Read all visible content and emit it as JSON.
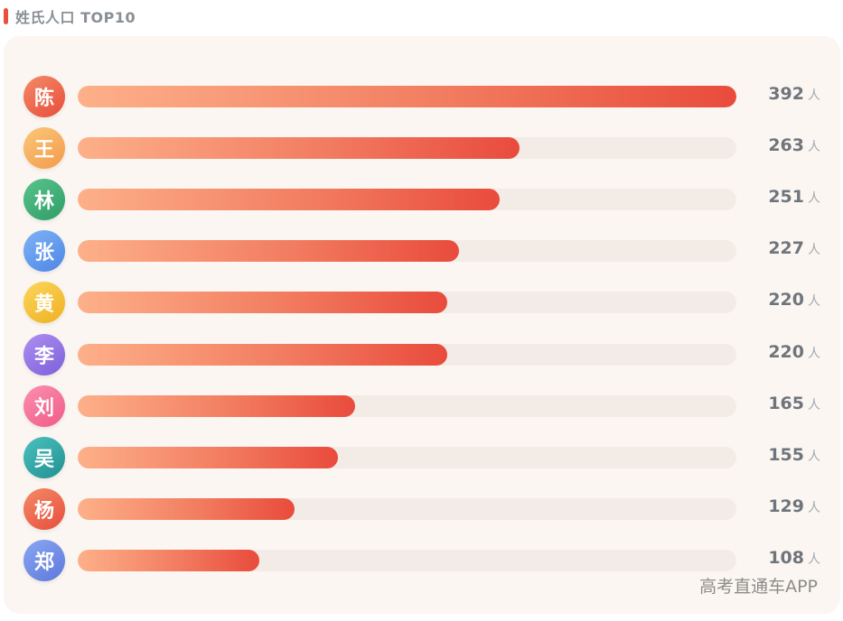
{
  "header": {
    "title": "姓氏人口 TOP10"
  },
  "chart_data": {
    "type": "bar",
    "orientation": "horizontal",
    "title": "姓氏人口 TOP10",
    "categories": [
      "陈",
      "王",
      "林",
      "张",
      "黄",
      "李",
      "刘",
      "吴",
      "杨",
      "郑"
    ],
    "values": [
      392,
      263,
      251,
      227,
      220,
      220,
      165,
      155,
      129,
      108
    ],
    "unit": "人",
    "xlim": [
      0,
      392
    ],
    "grid": false,
    "legend": "none",
    "bar_gradient": [
      "#fdb089",
      "#e94b3c"
    ],
    "track_color": "#f3ece6"
  },
  "avatar_gradients": [
    [
      "#f48a66",
      "#e84d3d"
    ],
    [
      "#fbc77a",
      "#f39a4a"
    ],
    [
      "#58c48c",
      "#2f9d66"
    ],
    [
      "#7fb3f5",
      "#4d86e6"
    ],
    [
      "#fbd65c",
      "#f0b021"
    ],
    [
      "#ad8ff0",
      "#7d5fdc"
    ],
    [
      "#fb8fb0",
      "#f05b88"
    ],
    [
      "#4bc1c0",
      "#20908f"
    ],
    [
      "#f48a66",
      "#e84d3d"
    ],
    [
      "#8aa6f2",
      "#5d79db"
    ]
  ],
  "watermark": "高考直通车APP"
}
